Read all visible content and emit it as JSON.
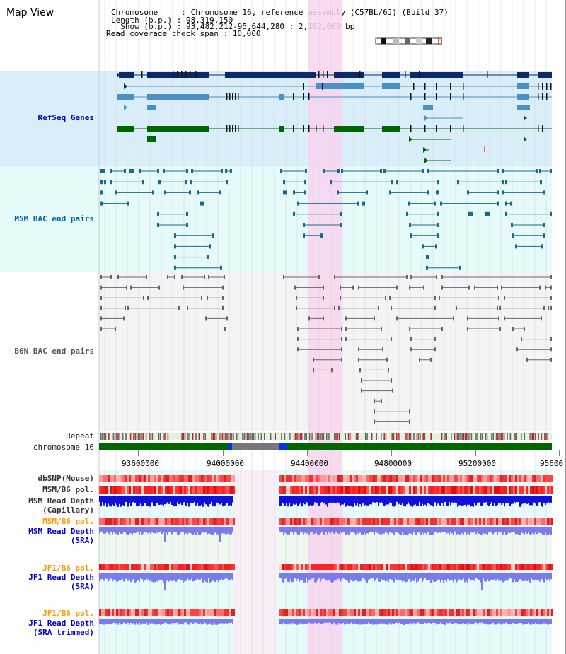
{
  "header": {
    "title": "Map View",
    "info_lines": [
      "Chromosome     : Chromosome 16, reference assembly (C57BL/6J) (Build 37)",
      "Length (b.p.) : 98,319,150",
      "  Show (b.p.) : 93,482,212-95,644,280 : 2,162,069 bp",
      "Read coverage check span : 10,000"
    ]
  },
  "tracks": {
    "refseq": "RefSeq Genes",
    "msm_bac": "MSM BAC end pairs",
    "b6n_bac": "B6N BAC end pairs",
    "repeat": "Repeat",
    "chromosome": "chromosome 16",
    "dbsnp": "dbSNP(Mouse)",
    "msm_b6_pol": "MSM/B6 pol.",
    "msm_depth_cap_1": "MSM Read Depth",
    "msm_depth_cap_2": "(Capillary)",
    "msm_b6_pol_2": "MSM/B6 pol.",
    "msm_depth_sra_1": "MSM Read Depth",
    "msm_depth_sra_2": "(SRA)",
    "jf1_b6_pol": "JF1/B6 pol.",
    "jf1_depth_sra_1": "JF1 Read Depth",
    "jf1_depth_sra_2": "(SRA)",
    "jf1_b6_pol_2": "JF1/B6 pol.",
    "jf1_depth_trim_1": "JF1 Read Depth",
    "jf1_depth_trim_2": "(SRA trimmed)"
  },
  "axis": {
    "ticks": [
      "93600000",
      "94000000",
      "94400000",
      "94800000",
      "95200000",
      "95600"
    ]
  },
  "colors": {
    "refseq_bg": "#daeefa",
    "msm_bg": "#e6fafa",
    "highlight": "#f8d4ee",
    "chrom_green": "#006600",
    "gene_dark": "#0a2a6a",
    "gene_mid": "#4a90c0",
    "gene_green": "#006600",
    "msm_line": "#1a6a8a",
    "b6n_line": "#666666",
    "snp_red": "#ee3333",
    "depth_blue": "#1010dd",
    "depth_light": "#7b7bee"
  }
}
